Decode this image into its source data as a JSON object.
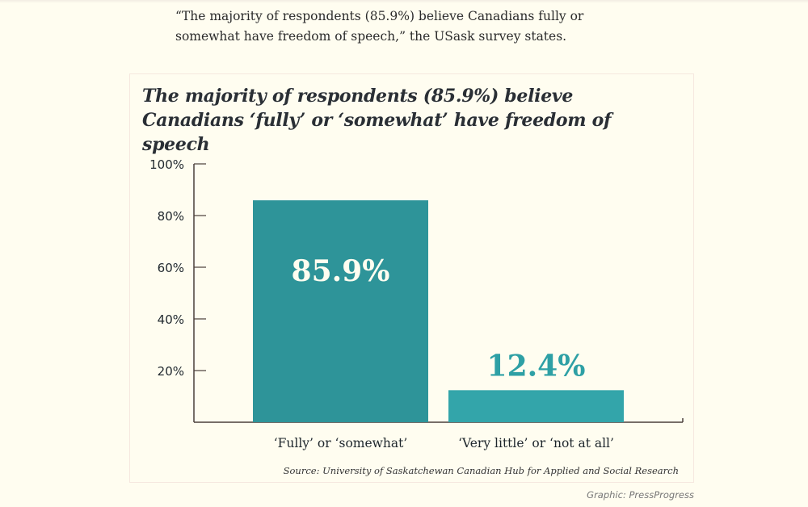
{
  "article": {
    "quote": "“The majority of respondents (85.9%) believe Canadians fully or somewhat have freedom of speech,” the USask survey states."
  },
  "graphic": {
    "source": "Source: University of Saskatchewan Canadian Hub for Applied and Social Research",
    "credit": "Graphic: PressProgress"
  },
  "colors": {
    "bar_primary": "#2e9499",
    "bar_secondary": "#33a5aa",
    "value_label_inside": "#fffdf0",
    "value_label_outside": "#2ea0a5",
    "axis": "#4a3f3a"
  },
  "chart_data": {
    "type": "bar",
    "title": "The majority of respondents (85.9%) believe Canadians ‘fully’ or ‘somewhat’ have freedom of speech",
    "title_lines": [
      "The majority of respondents (85.9%) believe",
      "Canadians ‘fully’ or ‘somewhat’ have freedom of speech"
    ],
    "categories": [
      "‘Fully’ or ‘somewhat’",
      "‘Very little’ or ‘not at all’"
    ],
    "values": [
      85.9,
      12.4
    ],
    "value_labels": [
      "85.9%",
      "12.4%"
    ],
    "xlabel": "",
    "ylabel": "",
    "ylim": [
      0,
      100
    ],
    "yticks": [
      20,
      40,
      60,
      80,
      100
    ],
    "ytick_labels": [
      "20%",
      "40%",
      "60%",
      "80%",
      "100%"
    ],
    "grid": false,
    "legend": "none"
  }
}
